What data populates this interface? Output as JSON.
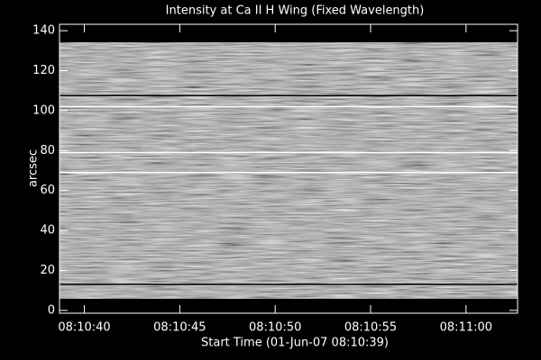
{
  "chart_data": {
    "type": "image",
    "title": "Intensity at Ca II H Wing (Fixed Wavelength)",
    "x_label": "Start Time (01-Jun-07 08:10:39)",
    "y_label": "arcsec",
    "xlim": [
      29438.7,
      29462.7
    ],
    "xticks": [
      {
        "value": 29440,
        "label": "08:10:40"
      },
      {
        "value": 29445,
        "label": "08:10:45"
      },
      {
        "value": 29450,
        "label": "08:10:50"
      },
      {
        "value": 29455,
        "label": "08:10:55"
      },
      {
        "value": 29460,
        "label": "08:11:00"
      }
    ],
    "ylim": [
      -1.4,
      143.2
    ],
    "yticks": [
      0,
      20,
      40,
      60,
      80,
      100,
      120,
      140
    ],
    "image_y": [
      6,
      134
    ],
    "lines": [
      {
        "y": 107.5,
        "color": "#000000"
      },
      {
        "y": 102,
        "color": "#ffffff"
      },
      {
        "y": 79,
        "color": "#ffffff"
      },
      {
        "y": 69,
        "color": "#ffffff"
      },
      {
        "y": 13,
        "color": "#000000"
      }
    ]
  }
}
